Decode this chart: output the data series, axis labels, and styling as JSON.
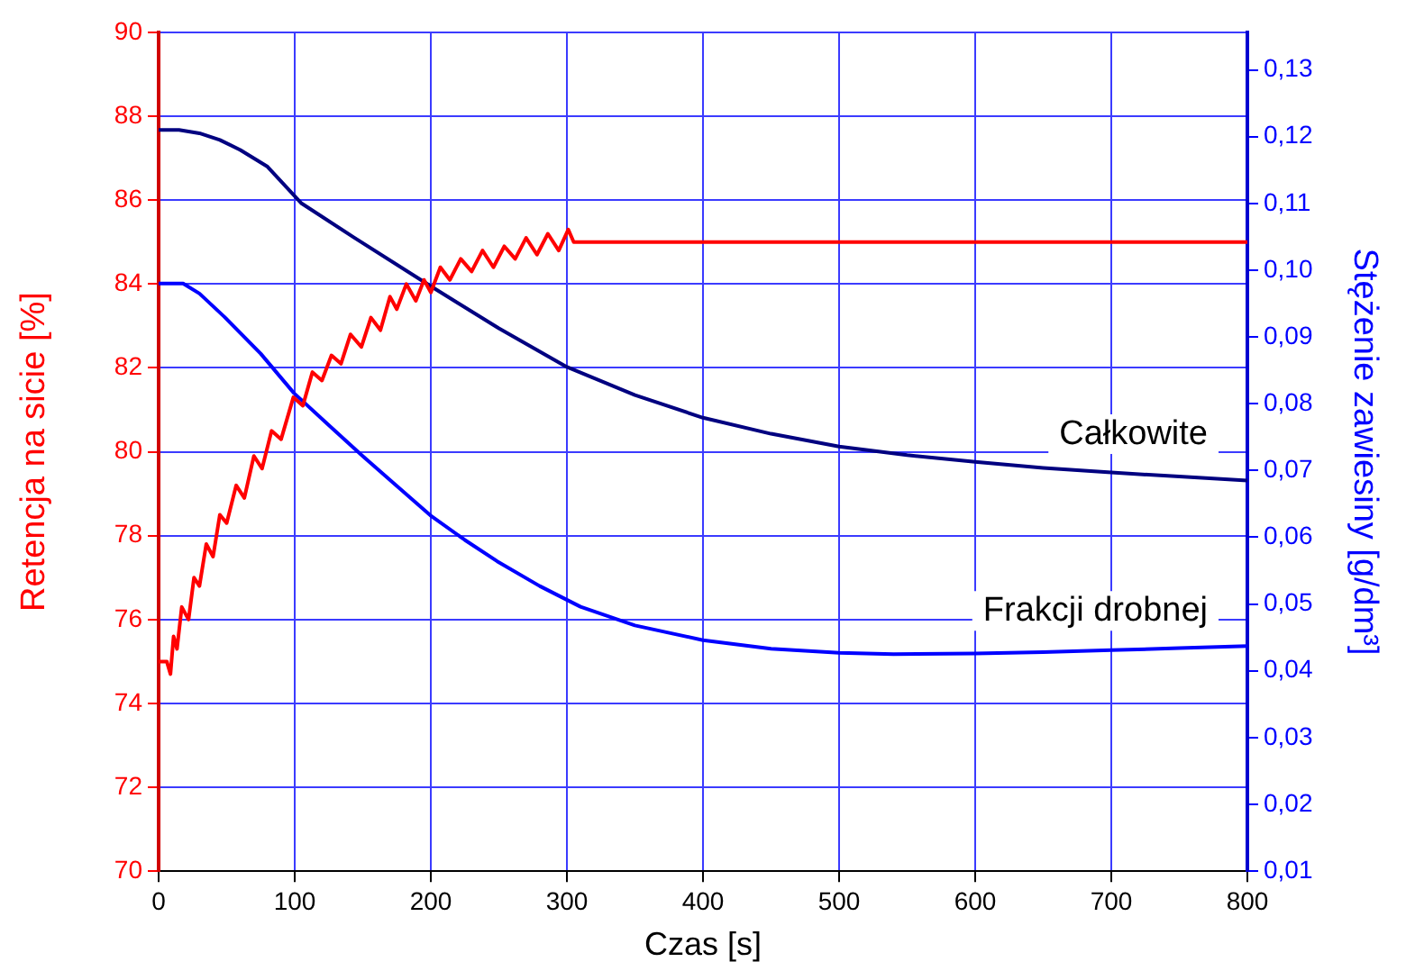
{
  "chart_data": {
    "type": "line",
    "xlabel": "Czas [s]",
    "ylabel": "Retencja na sicie [%]",
    "y2label": "Stężenie zawiesiny [g/dm³]",
    "xlim": [
      0,
      800
    ],
    "xticks": [
      0,
      100,
      200,
      300,
      400,
      500,
      600,
      700,
      800
    ],
    "ylim": [
      70,
      90
    ],
    "yticks": [
      70,
      72,
      74,
      76,
      78,
      80,
      82,
      84,
      86,
      88,
      90
    ],
    "y2lim": [
      0.01,
      0.1356
    ],
    "y2ticks": [
      {
        "value": 0.01,
        "label": "0,01"
      },
      {
        "value": 0.02,
        "label": "0,02"
      },
      {
        "value": 0.03,
        "label": "0,03"
      },
      {
        "value": 0.04,
        "label": "0,04"
      },
      {
        "value": 0.05,
        "label": "0,05"
      },
      {
        "value": 0.06,
        "label": "0,06"
      },
      {
        "value": 0.07,
        "label": "0,07"
      },
      {
        "value": 0.08,
        "label": "0,08"
      },
      {
        "value": 0.09,
        "label": "0,09"
      },
      {
        "value": 0.1,
        "label": "0,10"
      },
      {
        "value": 0.11,
        "label": "0,11"
      },
      {
        "value": 0.12,
        "label": "0,12"
      },
      {
        "value": 0.13,
        "label": "0,13"
      }
    ],
    "grid": true,
    "series": [
      {
        "color": "#ff0000",
        "x": [
          0,
          6,
          8.7,
          11,
          13.5,
          17,
          22,
          26,
          30,
          35,
          40,
          45,
          50,
          57,
          63,
          70,
          76,
          83,
          90,
          99,
          106,
          113,
          120,
          127,
          134,
          141,
          149,
          156,
          163,
          170,
          175,
          182,
          189,
          195,
          200,
          207,
          214,
          222,
          230,
          238,
          246,
          254,
          262,
          270,
          278,
          286,
          294,
          301,
          305,
          800
        ],
        "values": [
          75.0,
          75.0,
          74.7,
          75.6,
          75.3,
          76.3,
          76.0,
          77.0,
          76.8,
          77.8,
          77.5,
          78.5,
          78.3,
          79.2,
          78.9,
          79.9,
          79.6,
          80.5,
          80.3,
          81.3,
          81.1,
          81.9,
          81.7,
          82.3,
          82.1,
          82.8,
          82.5,
          83.2,
          82.9,
          83.7,
          83.4,
          84.0,
          83.6,
          84.1,
          83.8,
          84.4,
          84.1,
          84.6,
          84.3,
          84.8,
          84.4,
          84.9,
          84.6,
          85.1,
          84.7,
          85.2,
          84.8,
          85.3,
          85.0,
          85.0
        ]
      },
      {
        "name": "Całkowite",
        "color": "#000080",
        "axis": "y2",
        "x": [
          0,
          15,
          30,
          45,
          60,
          80,
          105,
          143.5,
          200,
          250,
          300,
          350,
          400,
          450,
          500,
          550,
          600,
          650,
          700,
          750,
          800
        ],
        "values": [
          0.121,
          0.121,
          0.1205,
          0.1195,
          0.118,
          0.1155,
          0.11,
          0.1049,
          0.0976,
          0.0913,
          0.0855,
          0.0813,
          0.0779,
          0.0755,
          0.0736,
          0.0723,
          0.0713,
          0.0704,
          0.0697,
          0.0691,
          0.0685
        ]
      },
      {
        "name": "Frakcji drobnej",
        "color": "#0000ff",
        "axis": "y2",
        "x": [
          0,
          18,
          30,
          48.4,
          75,
          99.4,
          125,
          148.6,
          175,
          199.6,
          225,
          248.8,
          280,
          310,
          350,
          400,
          450,
          500,
          540,
          600,
          650,
          700,
          750,
          800
        ],
        "values": [
          0.098,
          0.098,
          0.0965,
          0.093,
          0.0875,
          0.0816,
          0.0768,
          0.0724,
          0.0677,
          0.0633,
          0.0596,
          0.0564,
          0.0527,
          0.0496,
          0.0468,
          0.0446,
          0.0433,
          0.0427,
          0.0425,
          0.0426,
          0.0428,
          0.0431,
          0.0434,
          0.0437
        ]
      }
    ]
  }
}
